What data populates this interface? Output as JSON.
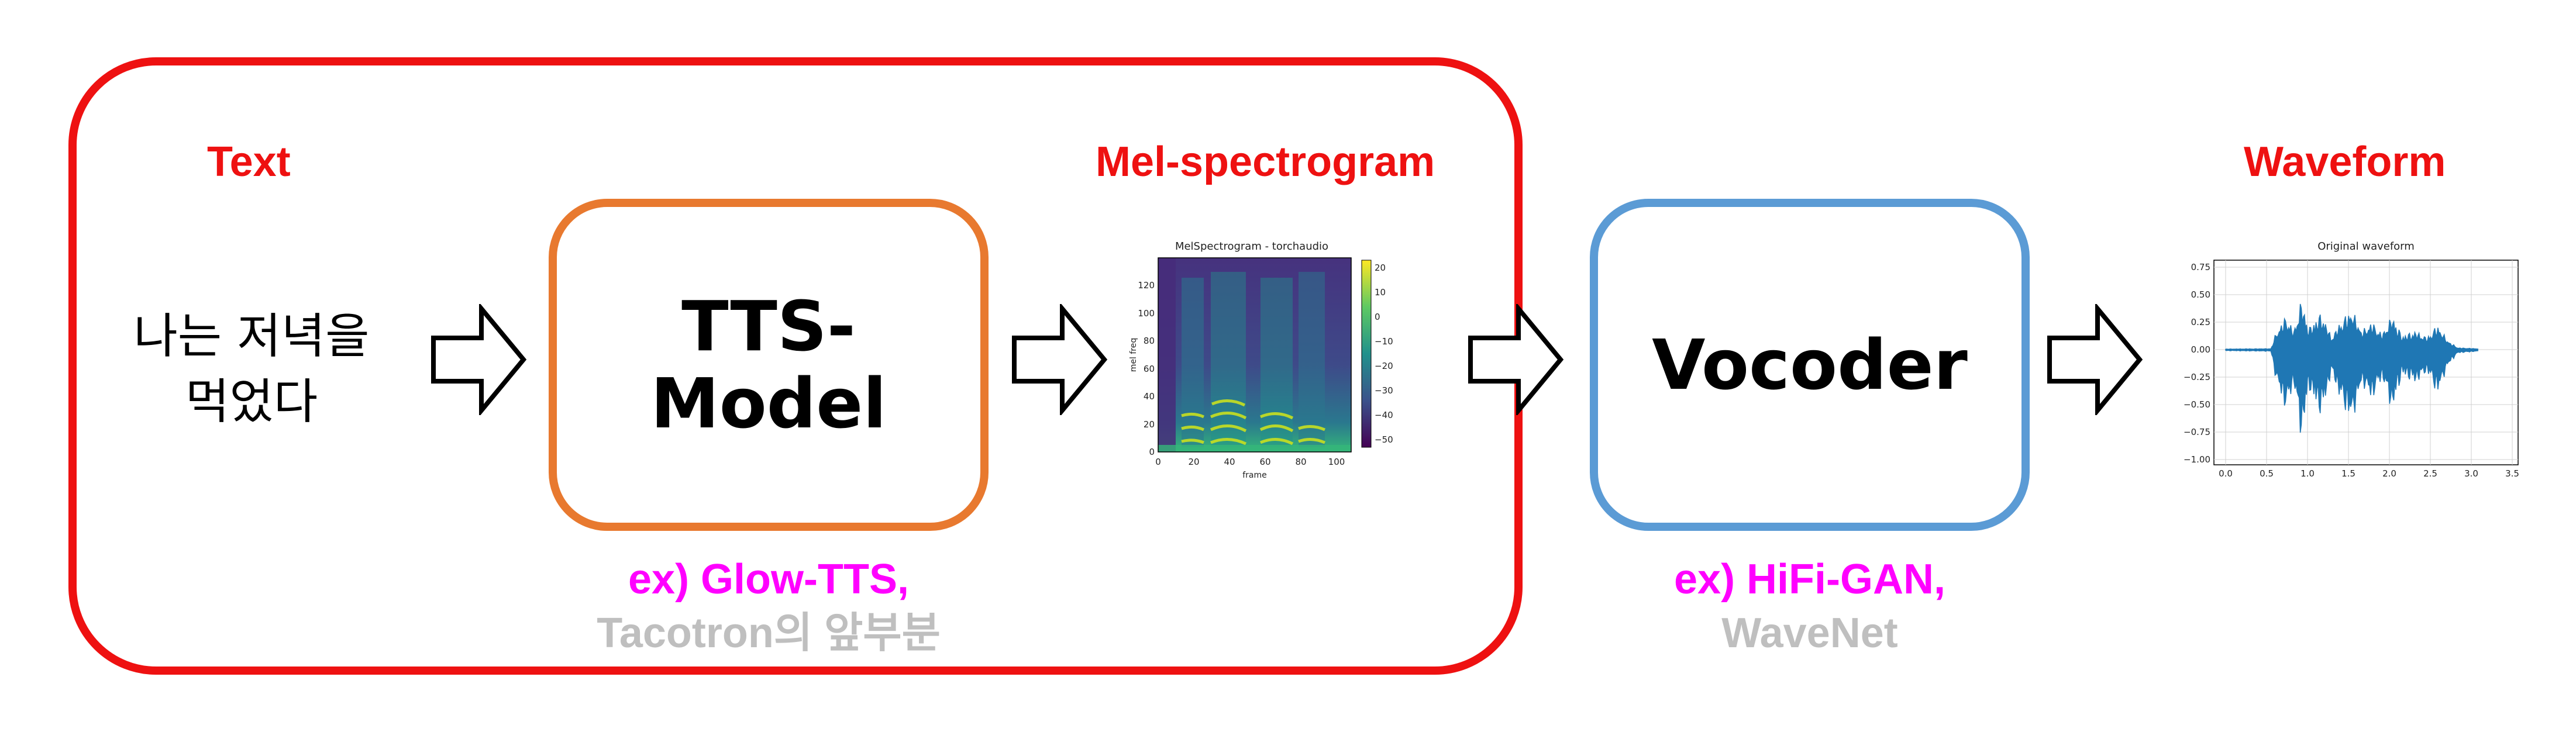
{
  "pipeline": {
    "stage_labels": {
      "text": "Text",
      "mel": "Mel-spectrogram",
      "waveform": "Waveform"
    },
    "input_text": "나는 저녁을\n먹었다",
    "tts_box": {
      "title": "TTS-\nModel",
      "example": "ex) Glow-TTS,",
      "note": "Tacotron의 앞부분"
    },
    "vocoder_box": {
      "title": "Vocoder",
      "example": "ex) HiFi-GAN,",
      "note": "WaveNet"
    }
  },
  "colors": {
    "frame": "#ee1111",
    "tts_border": "#e8792f",
    "vocoder_border": "#5b9bd5",
    "example": "#ff00ff",
    "note": "#bfbfbf"
  },
  "mel_plot": {
    "title": "MelSpectrogram - torchaudio",
    "xlabel": "frame",
    "ylabel": "mel freq",
    "x_ticks": [
      "0",
      "20",
      "40",
      "60",
      "80",
      "100"
    ],
    "y_ticks": [
      "0",
      "20",
      "40",
      "60",
      "80",
      "100",
      "120"
    ],
    "colorbar_ticks": [
      "20",
      "10",
      "0",
      "−10",
      "−20",
      "−30",
      "−40",
      "−50"
    ],
    "colormap": "viridis"
  },
  "wave_plot": {
    "title": "Original waveform",
    "x_ticks": [
      "0.0",
      "0.5",
      "1.0",
      "1.5",
      "2.0",
      "2.5",
      "3.0",
      "3.5"
    ],
    "y_ticks": [
      "0.75",
      "0.50",
      "0.25",
      "0.00",
      "−0.25",
      "−0.50",
      "−0.75",
      "−1.00"
    ],
    "line_color": "#1f77b4"
  }
}
